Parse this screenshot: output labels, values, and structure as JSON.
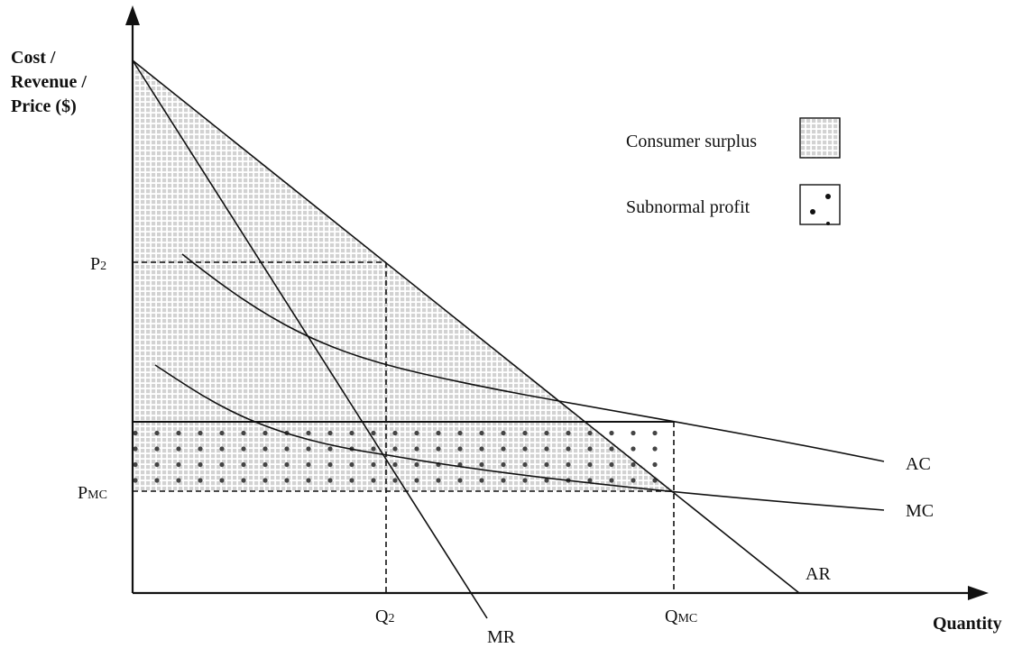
{
  "axes": {
    "y_title_lines": [
      "Cost /",
      "Revenue /",
      "Price ($)"
    ],
    "x_title": "Quantity"
  },
  "ticks": {
    "p2_main": "P",
    "p2_sub": "2",
    "pmc_main": "P",
    "pmc_sub": "MC",
    "q2_main": "Q",
    "q2_sub": "2",
    "qmc_main": "Q",
    "qmc_sub": "MC"
  },
  "curves": {
    "ar": "AR",
    "mr": "MR",
    "ac": "AC",
    "mc": "MC"
  },
  "legend": {
    "consumer_surplus": "Consumer surplus",
    "subnormal_profit": "Subnormal profit"
  },
  "colors": {
    "ink": "#111111",
    "surplus_grid": "#bdbdbd",
    "profit_dot": "#444444"
  }
}
